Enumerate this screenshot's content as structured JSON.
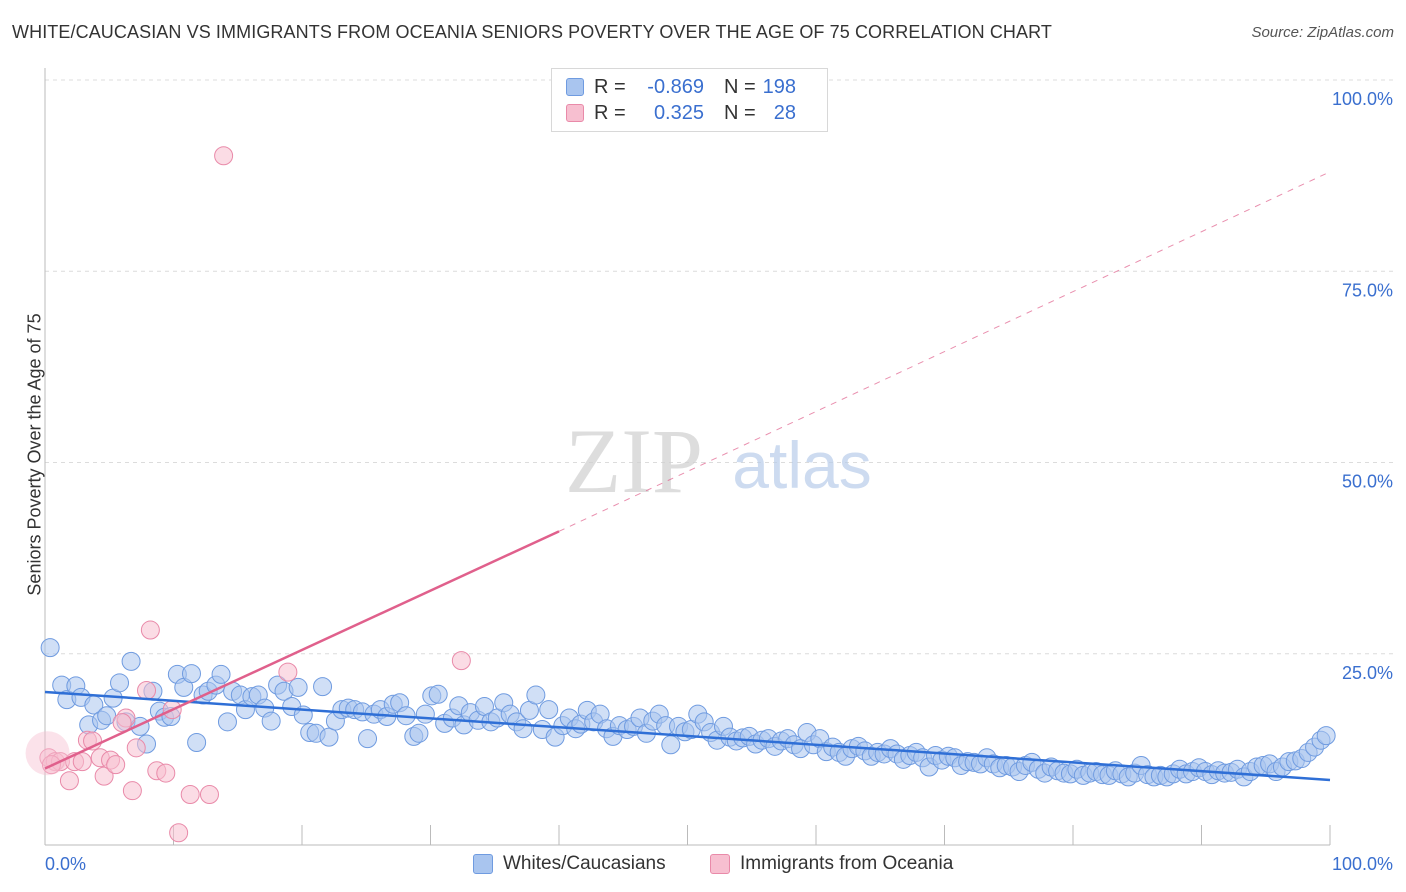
{
  "title": "WHITE/CAUCASIAN VS IMMIGRANTS FROM OCEANIA SENIORS POVERTY OVER THE AGE OF 75 CORRELATION CHART",
  "source": "Source: ZipAtlas.com",
  "watermark": {
    "zip": "ZIP",
    "atlas": "atlas"
  },
  "legend_box": {
    "rows": [
      {
        "r_label": "R =",
        "r_value": "-0.869",
        "n_label": "N =",
        "n_value": "198",
        "color": "#a9c5ef",
        "border": "#6f9be0"
      },
      {
        "r_label": "R =",
        "r_value": "0.325",
        "n_label": "N =",
        "n_value": "28",
        "color": "#f7bfd0",
        "border": "#e98aa9"
      }
    ]
  },
  "chart_data": {
    "type": "scatter",
    "title": "WHITE/CAUCASIAN VS IMMIGRANTS FROM OCEANIA SENIORS POVERTY OVER THE AGE OF 75 CORRELATION CHART",
    "xlabel": "",
    "ylabel": "Seniors Poverty Over the Age of 75",
    "xlim": [
      0,
      100
    ],
    "ylim": [
      0,
      105
    ],
    "x_tick_labels": [
      "0.0%",
      "100.0%"
    ],
    "y_ticks": [
      25,
      50,
      75,
      100
    ],
    "y_tick_labels": [
      "25.0%",
      "50.0%",
      "75.0%",
      "100.0%"
    ],
    "grid": true,
    "legend": "bottom-center",
    "series": [
      {
        "name": "Whites/Caucasians",
        "color": "#a9c5ef",
        "stroke": "#6f9be0",
        "r": -0.869,
        "n": 198,
        "trend": {
          "x0": 0,
          "y0": 20.0,
          "x1": 100,
          "y1": 8.5,
          "color": "#2f6fd6"
        },
        "points": [
          [
            0.4,
            25.8
          ],
          [
            1.3,
            20.9
          ],
          [
            1.7,
            19.0
          ],
          [
            2.4,
            20.8
          ],
          [
            2.8,
            19.3
          ],
          [
            3.4,
            15.7
          ],
          [
            3.8,
            18.3
          ],
          [
            4.4,
            16.3
          ],
          [
            4.8,
            16.9
          ],
          [
            5.3,
            19.2
          ],
          [
            5.8,
            21.2
          ],
          [
            6.3,
            16.1
          ],
          [
            6.7,
            24.0
          ],
          [
            7.4,
            15.5
          ],
          [
            7.9,
            13.2
          ],
          [
            8.4,
            20.1
          ],
          [
            8.9,
            17.5
          ],
          [
            9.3,
            16.7
          ],
          [
            9.8,
            16.8
          ],
          [
            10.3,
            22.3
          ],
          [
            10.8,
            20.6
          ],
          [
            11.4,
            22.4
          ],
          [
            11.8,
            13.4
          ],
          [
            12.3,
            19.6
          ],
          [
            12.7,
            20.1
          ],
          [
            13.3,
            20.9
          ],
          [
            13.7,
            22.3
          ],
          [
            14.2,
            16.1
          ],
          [
            14.6,
            20.1
          ],
          [
            15.2,
            19.6
          ],
          [
            15.6,
            17.7
          ],
          [
            16.1,
            19.4
          ],
          [
            16.6,
            19.6
          ],
          [
            17.1,
            17.9
          ],
          [
            17.6,
            16.2
          ],
          [
            18.1,
            20.9
          ],
          [
            18.6,
            20.1
          ],
          [
            19.2,
            18.1
          ],
          [
            19.7,
            20.6
          ],
          [
            20.1,
            17.0
          ],
          [
            20.6,
            14.7
          ],
          [
            21.1,
            14.6
          ],
          [
            21.6,
            20.7
          ],
          [
            22.1,
            14.1
          ],
          [
            22.6,
            16.2
          ],
          [
            23.1,
            17.7
          ],
          [
            23.6,
            17.9
          ],
          [
            24.1,
            17.7
          ],
          [
            24.7,
            17.4
          ],
          [
            25.1,
            13.9
          ],
          [
            25.6,
            17.1
          ],
          [
            26.1,
            17.7
          ],
          [
            26.6,
            16.8
          ],
          [
            27.1,
            18.4
          ],
          [
            27.6,
            18.6
          ],
          [
            28.1,
            16.9
          ],
          [
            28.7,
            14.2
          ],
          [
            29.1,
            14.6
          ],
          [
            29.6,
            17.1
          ],
          [
            30.1,
            19.5
          ],
          [
            30.6,
            19.7
          ],
          [
            31.1,
            15.9
          ],
          [
            31.7,
            16.6
          ],
          [
            32.2,
            18.2
          ],
          [
            32.6,
            15.7
          ],
          [
            33.1,
            17.3
          ],
          [
            33.7,
            16.3
          ],
          [
            34.2,
            18.1
          ],
          [
            34.7,
            16.1
          ],
          [
            35.2,
            16.6
          ],
          [
            35.7,
            18.6
          ],
          [
            36.2,
            17.1
          ],
          [
            36.7,
            16.1
          ],
          [
            37.2,
            15.2
          ],
          [
            37.7,
            17.6
          ],
          [
            38.2,
            19.6
          ],
          [
            38.7,
            15.1
          ],
          [
            39.2,
            17.7
          ],
          [
            39.7,
            14.1
          ],
          [
            40.3,
            15.6
          ],
          [
            40.8,
            16.6
          ],
          [
            41.3,
            15.2
          ],
          [
            41.7,
            15.8
          ],
          [
            42.2,
            17.6
          ],
          [
            42.7,
            16.1
          ],
          [
            43.2,
            17.1
          ],
          [
            43.7,
            15.2
          ],
          [
            44.2,
            14.2
          ],
          [
            44.7,
            15.6
          ],
          [
            45.3,
            15.1
          ],
          [
            45.8,
            15.5
          ],
          [
            46.3,
            16.6
          ],
          [
            46.8,
            14.6
          ],
          [
            47.3,
            16.2
          ],
          [
            47.8,
            17.1
          ],
          [
            48.3,
            15.6
          ],
          [
            48.7,
            13.1
          ],
          [
            49.3,
            15.5
          ],
          [
            49.8,
            14.8
          ],
          [
            50.3,
            15.1
          ],
          [
            50.8,
            17.1
          ],
          [
            51.3,
            16.1
          ],
          [
            51.8,
            14.7
          ],
          [
            52.3,
            13.7
          ],
          [
            52.8,
            15.5
          ],
          [
            53.3,
            14.1
          ],
          [
            53.8,
            13.6
          ],
          [
            54.3,
            14.0
          ],
          [
            54.8,
            14.2
          ],
          [
            55.3,
            13.2
          ],
          [
            55.8,
            13.7
          ],
          [
            56.3,
            13.9
          ],
          [
            56.8,
            12.9
          ],
          [
            57.3,
            13.6
          ],
          [
            57.8,
            13.9
          ],
          [
            58.3,
            13.1
          ],
          [
            58.8,
            12.6
          ],
          [
            59.3,
            14.7
          ],
          [
            59.8,
            13.1
          ],
          [
            60.3,
            13.9
          ],
          [
            60.8,
            12.2
          ],
          [
            61.3,
            12.8
          ],
          [
            61.8,
            12.1
          ],
          [
            62.3,
            11.6
          ],
          [
            62.8,
            12.6
          ],
          [
            63.3,
            12.9
          ],
          [
            63.8,
            12.3
          ],
          [
            64.3,
            11.6
          ],
          [
            64.8,
            12.1
          ],
          [
            65.3,
            11.9
          ],
          [
            65.8,
            12.6
          ],
          [
            66.3,
            11.9
          ],
          [
            66.8,
            11.2
          ],
          [
            67.3,
            11.7
          ],
          [
            67.8,
            12.1
          ],
          [
            68.3,
            11.4
          ],
          [
            68.8,
            10.2
          ],
          [
            69.3,
            11.7
          ],
          [
            69.8,
            11.1
          ],
          [
            70.3,
            11.6
          ],
          [
            70.8,
            11.4
          ],
          [
            71.3,
            10.4
          ],
          [
            71.8,
            10.9
          ],
          [
            72.3,
            10.8
          ],
          [
            72.8,
            10.6
          ],
          [
            73.3,
            11.4
          ],
          [
            73.8,
            10.6
          ],
          [
            74.3,
            10.1
          ],
          [
            74.8,
            10.4
          ],
          [
            75.3,
            10.2
          ],
          [
            75.8,
            9.6
          ],
          [
            76.3,
            10.4
          ],
          [
            76.8,
            10.8
          ],
          [
            77.3,
            9.9
          ],
          [
            77.8,
            9.4
          ],
          [
            78.3,
            10.2
          ],
          [
            78.8,
            9.7
          ],
          [
            79.3,
            9.4
          ],
          [
            79.8,
            9.3
          ],
          [
            80.3,
            9.9
          ],
          [
            80.8,
            9.1
          ],
          [
            81.3,
            9.4
          ],
          [
            81.8,
            9.6
          ],
          [
            82.3,
            9.2
          ],
          [
            82.8,
            9.1
          ],
          [
            83.3,
            9.7
          ],
          [
            83.8,
            9.3
          ],
          [
            84.3,
            8.9
          ],
          [
            84.8,
            9.4
          ],
          [
            85.3,
            10.4
          ],
          [
            85.8,
            9.2
          ],
          [
            86.3,
            8.9
          ],
          [
            86.8,
            9.1
          ],
          [
            87.3,
            8.9
          ],
          [
            87.8,
            9.3
          ],
          [
            88.3,
            9.9
          ],
          [
            88.8,
            9.3
          ],
          [
            89.3,
            9.6
          ],
          [
            89.8,
            10.1
          ],
          [
            90.3,
            9.6
          ],
          [
            90.8,
            9.2
          ],
          [
            91.3,
            9.7
          ],
          [
            91.8,
            9.4
          ],
          [
            92.3,
            9.5
          ],
          [
            92.8,
            9.9
          ],
          [
            93.3,
            8.9
          ],
          [
            93.8,
            9.6
          ],
          [
            94.3,
            10.2
          ],
          [
            94.8,
            10.4
          ],
          [
            95.3,
            10.6
          ],
          [
            95.8,
            9.6
          ],
          [
            96.3,
            10.2
          ],
          [
            96.8,
            10.9
          ],
          [
            97.3,
            11.0
          ],
          [
            97.8,
            11.3
          ],
          [
            98.3,
            12.1
          ],
          [
            98.8,
            12.8
          ],
          [
            99.3,
            13.7
          ],
          [
            99.7,
            14.3
          ]
        ]
      },
      {
        "name": "Immigrants from Oceania",
        "color": "#f7bfd0",
        "stroke": "#e98aa9",
        "r": 0.325,
        "n": 28,
        "trend": {
          "x0": 0,
          "y0": 10.0,
          "x1": 40,
          "y1": 41.0,
          "extend_to_x": 100,
          "extend_to_y": 88.0,
          "color": "#e0608c"
        },
        "points": [
          [
            0.3,
            11.4
          ],
          [
            0.8,
            10.9
          ],
          [
            1.2,
            10.9
          ],
          [
            1.9,
            8.4
          ],
          [
            2.3,
            10.9
          ],
          [
            2.9,
            10.9
          ],
          [
            3.3,
            13.7
          ],
          [
            3.7,
            13.6
          ],
          [
            4.3,
            11.4
          ],
          [
            4.6,
            9.0
          ],
          [
            5.1,
            11.1
          ],
          [
            5.5,
            10.5
          ],
          [
            6.3,
            16.6
          ],
          [
            6.8,
            7.1
          ],
          [
            7.1,
            12.7
          ],
          [
            7.9,
            20.2
          ],
          [
            8.2,
            28.1
          ],
          [
            8.7,
            9.7
          ],
          [
            9.4,
            9.4
          ],
          [
            9.9,
            17.7
          ],
          [
            10.4,
            1.6
          ],
          [
            11.3,
            6.6
          ],
          [
            12.8,
            6.6
          ],
          [
            13.9,
            90.1
          ],
          [
            18.9,
            22.6
          ],
          [
            32.4,
            24.1
          ],
          [
            6.0,
            16.0
          ],
          [
            0.5,
            10.5
          ]
        ]
      }
    ]
  },
  "bottom_legend": [
    {
      "label": "Whites/Caucasians",
      "color": "#a9c5ef",
      "border": "#6f9be0"
    },
    {
      "label": "Immigrants from Oceania",
      "color": "#f7bfd0",
      "border": "#e98aa9"
    }
  ]
}
